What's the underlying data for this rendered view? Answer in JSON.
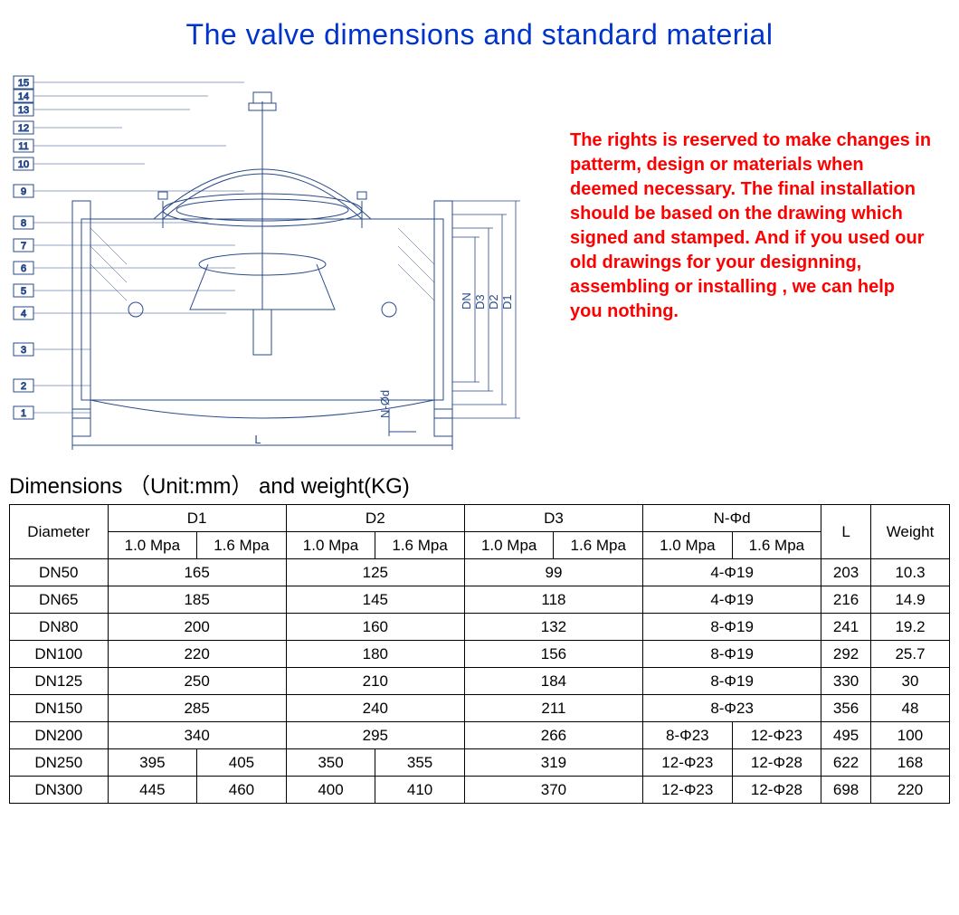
{
  "title": "The valve dimensions and standard material",
  "notice": "The rights is reserved to make changes in patterm, design or materials when deemed necessary. The final installation should be based on the drawing which signed and stamped. And if you used our old drawings for your designning, assembling or installing , we can help you nothing.",
  "subtitle": "Dimensions （Unit:mm） and weight(KG)",
  "colors": {
    "title": "#0033cc",
    "notice": "#ff0000",
    "drawing_line": "#2a4a8a",
    "table_border": "#000000",
    "background": "#ffffff"
  },
  "fonts": {
    "title_size": 32,
    "notice_size": 20,
    "subtitle_size": 24,
    "table_size": 17
  },
  "diagram": {
    "callouts": [
      "15",
      "14",
      "13",
      "12",
      "11",
      "10",
      "9",
      "8",
      "7",
      "6",
      "5",
      "4",
      "3",
      "2",
      "1"
    ],
    "dim_labels": [
      "DN",
      "D3",
      "D2",
      "D1",
      "L",
      "N-Ød"
    ]
  },
  "table": {
    "header_row1": [
      "Diameter",
      "D1",
      "D2",
      "D3",
      "N-Φd",
      "L",
      "Weight"
    ],
    "header_row2": [
      "1.0 Mpa",
      "1.6 Mpa",
      "1.0 Mpa",
      "1.6 Mpa",
      "1.0 Mpa",
      "1.6 Mpa",
      "1.0 Mpa",
      "1.6 Mpa"
    ],
    "rows": [
      {
        "dia": "DN50",
        "d1": {
          "span": true,
          "v": "165"
        },
        "d2": {
          "span": true,
          "v": "125"
        },
        "d3": {
          "span": true,
          "v": "99"
        },
        "nd": {
          "span": true,
          "v": "4-Φ19"
        },
        "L": "203",
        "W": "10.3"
      },
      {
        "dia": "DN65",
        "d1": {
          "span": true,
          "v": "185"
        },
        "d2": {
          "span": true,
          "v": "145"
        },
        "d3": {
          "span": true,
          "v": "118"
        },
        "nd": {
          "span": true,
          "v": "4-Φ19"
        },
        "L": "216",
        "W": "14.9"
      },
      {
        "dia": "DN80",
        "d1": {
          "span": true,
          "v": "200"
        },
        "d2": {
          "span": true,
          "v": "160"
        },
        "d3": {
          "span": true,
          "v": "132"
        },
        "nd": {
          "span": true,
          "v": "8-Φ19"
        },
        "L": "241",
        "W": "19.2"
      },
      {
        "dia": "DN100",
        "d1": {
          "span": true,
          "v": "220"
        },
        "d2": {
          "span": true,
          "v": "180"
        },
        "d3": {
          "span": true,
          "v": "156"
        },
        "nd": {
          "span": true,
          "v": "8-Φ19"
        },
        "L": "292",
        "W": "25.7"
      },
      {
        "dia": "DN125",
        "d1": {
          "span": true,
          "v": "250"
        },
        "d2": {
          "span": true,
          "v": "210"
        },
        "d3": {
          "span": true,
          "v": "184"
        },
        "nd": {
          "span": true,
          "v": "8-Φ19"
        },
        "L": "330",
        "W": "30"
      },
      {
        "dia": "DN150",
        "d1": {
          "span": true,
          "v": "285"
        },
        "d2": {
          "span": true,
          "v": "240"
        },
        "d3": {
          "span": true,
          "v": "211"
        },
        "nd": {
          "span": true,
          "v": "8-Φ23"
        },
        "L": "356",
        "W": "48"
      },
      {
        "dia": "DN200",
        "d1": {
          "span": true,
          "v": "340"
        },
        "d2": {
          "span": true,
          "v": "295"
        },
        "d3": {
          "span": true,
          "v": "266"
        },
        "nd": {
          "a": "8-Φ23",
          "b": "12-Φ23"
        },
        "L": "495",
        "W": "100"
      },
      {
        "dia": "DN250",
        "d1": {
          "a": "395",
          "b": "405"
        },
        "d2": {
          "a": "350",
          "b": "355"
        },
        "d3": {
          "span": true,
          "v": "319"
        },
        "nd": {
          "a": "12-Φ23",
          "b": "12-Φ28"
        },
        "L": "622",
        "W": "168"
      },
      {
        "dia": "DN300",
        "d1": {
          "a": "445",
          "b": "460"
        },
        "d2": {
          "a": "400",
          "b": "410"
        },
        "d3": {
          "span": true,
          "v": "370"
        },
        "nd": {
          "a": "12-Φ23",
          "b": "12-Φ28"
        },
        "L": "698",
        "W": "220"
      }
    ]
  }
}
